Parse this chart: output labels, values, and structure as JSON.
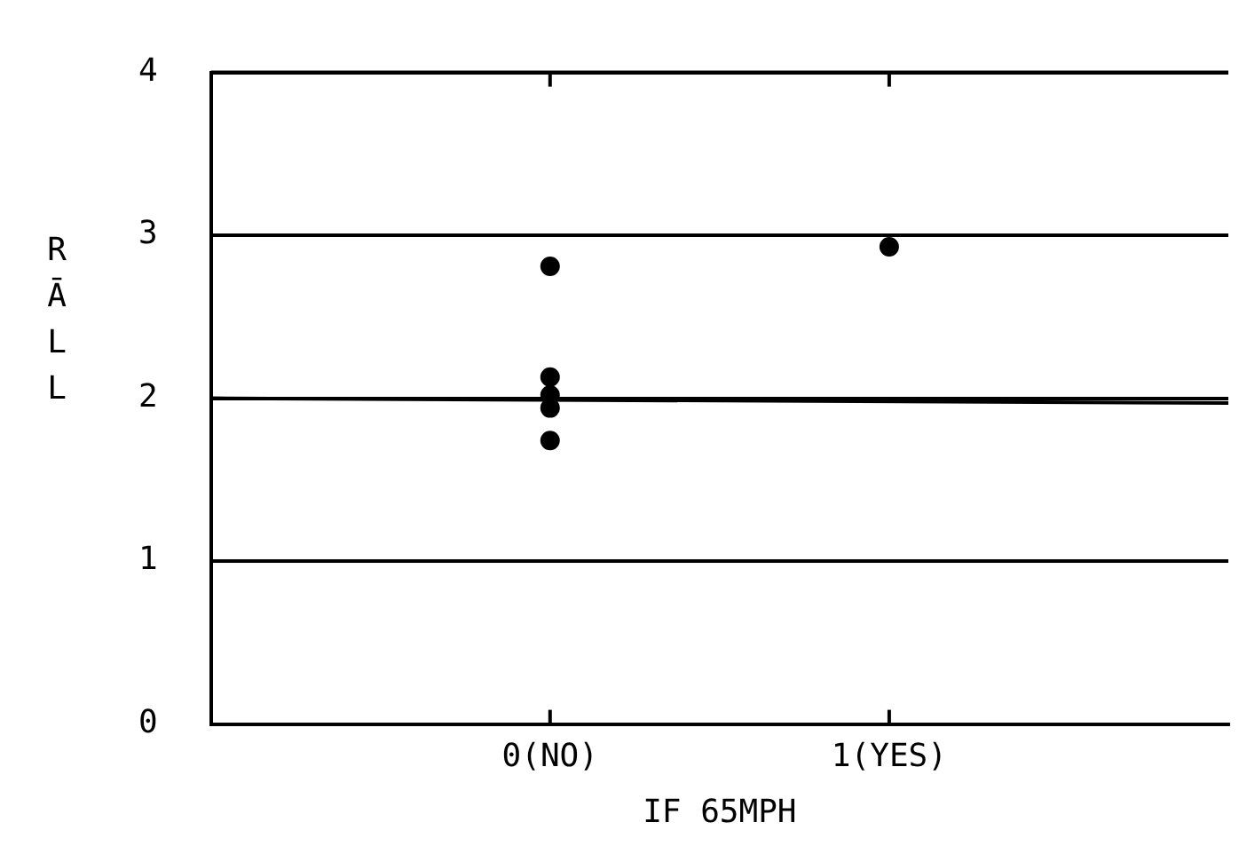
{
  "chart_data": {
    "type": "scatter",
    "xlabel": "IF 65MPH",
    "ylabel": "RĀLL",
    "xlim": [
      -1,
      2
    ],
    "xticks": [
      {
        "value": 0,
        "label": "0(NO)"
      },
      {
        "value": 1,
        "label": "1(YES)"
      }
    ],
    "ylim": [
      0,
      4
    ],
    "yticks": [
      0,
      1,
      2,
      3,
      4
    ],
    "grid": "y",
    "legend": false,
    "series": [
      {
        "color": "#000000",
        "marker": "circle",
        "x": [
          0,
          0,
          0,
          0,
          0,
          1
        ],
        "values": [
          2.81,
          2.13,
          2.02,
          1.94,
          1.74,
          2.93
        ]
      },
      {
        "type": "line",
        "color": "#000000",
        "marker": "none",
        "x": [
          -1,
          2
        ],
        "values": [
          2.0,
          1.97
        ]
      }
    ]
  }
}
